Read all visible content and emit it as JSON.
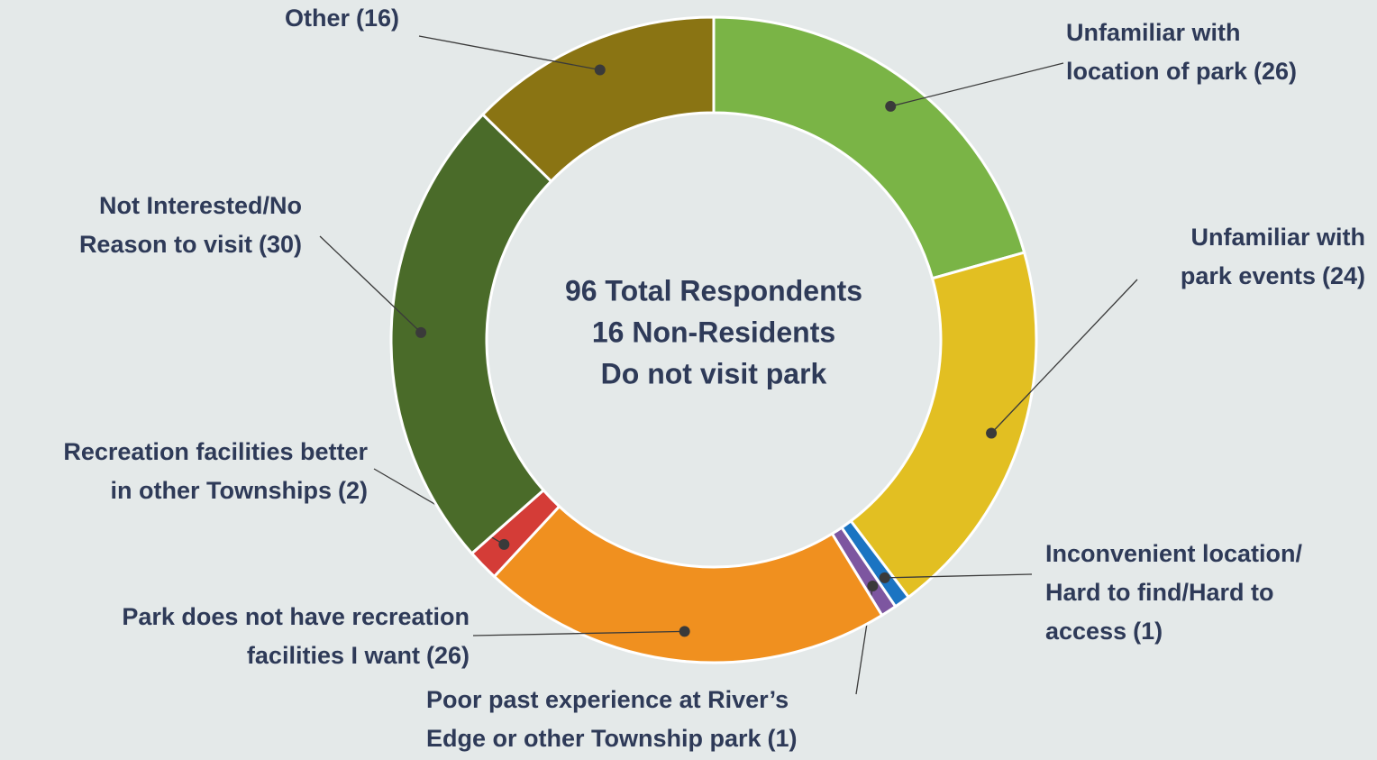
{
  "chart_data": {
    "type": "donut",
    "center_text": [
      "96 Total Respondents",
      "16 Non-Residents",
      "Do not visit park"
    ],
    "categories": [
      [
        "Unfamiliar with",
        "location of park"
      ],
      [
        "Unfamiliar with",
        "park events"
      ],
      [
        "Inconvenient location/",
        "Hard to find/Hard to",
        "access"
      ],
      [
        "Poor past experience at River’s",
        "Edge or other Township park"
      ],
      [
        "Park does not have recreation",
        "facilities I want"
      ],
      [
        "Recreation facilities better",
        "in other Townships"
      ],
      [
        "Not Interested/No",
        "Reason to visit"
      ],
      [
        "Other"
      ]
    ],
    "values": [
      26,
      24,
      1,
      1,
      26,
      2,
      30,
      16
    ],
    "value_labels": [
      "(26)",
      "(24)",
      "(1)",
      "(1)",
      "(26)",
      "(2)",
      "(30)",
      "(16)"
    ],
    "colors": [
      "#7ab446",
      "#e2bf22",
      "#1b74c2",
      "#7d56a0",
      "#f0901f",
      "#d43c37",
      "#4a6b29",
      "#8a7413"
    ]
  }
}
